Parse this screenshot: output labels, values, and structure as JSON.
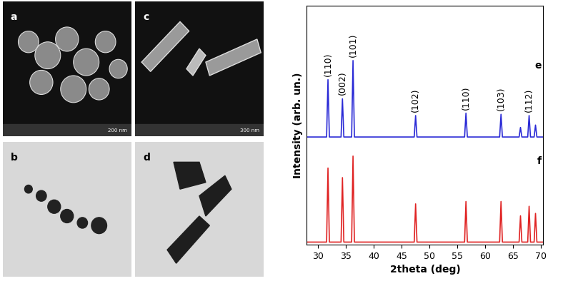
{
  "image_panels": [
    {
      "label": "a",
      "scale_bar": "200 nm"
    },
    {
      "label": "b"
    },
    {
      "label": "c",
      "scale_bar": "300 nm"
    },
    {
      "label": "d"
    }
  ],
  "chart_data": {
    "type": "line",
    "x_label": "2theta (deg)",
    "y_label": "Intensity (arb. un.)",
    "x": [
      28,
      31.55,
      31.8,
      32.05,
      34.15,
      34.4,
      34.65,
      36.05,
      36.3,
      36.55,
      47.3,
      47.55,
      47.8,
      56.35,
      56.6,
      56.85,
      62.65,
      62.9,
      63.15,
      66.15,
      66.4,
      66.65,
      67.7,
      67.95,
      68.2,
      68.85,
      69.1,
      69.35,
      70.5
    ],
    "series": [
      {
        "name": "e",
        "color": "#2b2bd6",
        "values": [
          45,
          45,
          69,
          45,
          45,
          61,
          45,
          45,
          77,
          45,
          45,
          54,
          45,
          45,
          55,
          45,
          45,
          54.5,
          45,
          45,
          49,
          45,
          45,
          54,
          45,
          45,
          50,
          45,
          45
        ]
      },
      {
        "name": "f",
        "color": "#e02424",
        "values": [
          1,
          1,
          32,
          1,
          1,
          28,
          1,
          1,
          37,
          1,
          1,
          17,
          1,
          1,
          18,
          1,
          1,
          18,
          1,
          1,
          12,
          1,
          1,
          16,
          1,
          1,
          13,
          1,
          1
        ]
      }
    ],
    "annotations": [
      {
        "text": "(110)",
        "x": 31.8,
        "y": 69
      },
      {
        "text": "(002)",
        "x": 34.4,
        "y": 61
      },
      {
        "text": "(101)",
        "x": 36.3,
        "y": 77
      },
      {
        "text": "(102)",
        "x": 47.55,
        "y": 54
      },
      {
        "text": "(110)",
        "x": 56.6,
        "y": 55
      },
      {
        "text": "(103)",
        "x": 62.9,
        "y": 54.5
      },
      {
        "text": "(112)",
        "x": 67.95,
        "y": 54
      }
    ],
    "xlim": [
      28,
      70.5
    ],
    "xticks": [
      30,
      35,
      40,
      45,
      50,
      55,
      60,
      65,
      70
    ],
    "ylim": [
      0,
      100
    ],
    "yticks": [],
    "tick_labels": "x",
    "grid": false
  }
}
